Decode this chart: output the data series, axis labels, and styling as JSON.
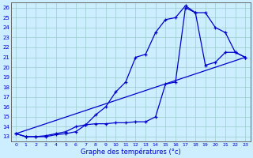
{
  "xlabel": "Graphe des températures (°c)",
  "bg_color": "#cceeff",
  "line_color": "#0000cc",
  "grid_color": "#99cccc",
  "axis_color": "#666666",
  "xlim": [
    -0.5,
    23.5
  ],
  "ylim": [
    12.5,
    26.5
  ],
  "xticks": [
    0,
    1,
    2,
    3,
    4,
    5,
    6,
    7,
    8,
    9,
    10,
    11,
    12,
    13,
    14,
    15,
    16,
    17,
    18,
    19,
    20,
    21,
    22,
    23
  ],
  "yticks": [
    13,
    14,
    15,
    16,
    17,
    18,
    19,
    20,
    21,
    22,
    23,
    24,
    25,
    26
  ],
  "line1_x": [
    0,
    1,
    2,
    3,
    4,
    5,
    6,
    7,
    8,
    9,
    10,
    11,
    12,
    13,
    14,
    15,
    16,
    17,
    18,
    19,
    20,
    21,
    22,
    23
  ],
  "line1_y": [
    13.3,
    13.0,
    13.0,
    13.0,
    13.2,
    13.3,
    13.5,
    14.2,
    15.2,
    16.0,
    17.5,
    18.5,
    21.0,
    21.3,
    23.5,
    24.8,
    25.0,
    26.2,
    25.5,
    25.5,
    24.0,
    23.5,
    21.5,
    21.0
  ],
  "line2_x": [
    0,
    1,
    2,
    3,
    4,
    5,
    6,
    7,
    8,
    9,
    10,
    11,
    12,
    13,
    14,
    15,
    16,
    17,
    18,
    19,
    20,
    21,
    22,
    23
  ],
  "line2_y": [
    13.3,
    13.0,
    13.0,
    13.1,
    13.3,
    13.5,
    14.0,
    14.2,
    14.3,
    14.3,
    14.4,
    14.4,
    14.5,
    14.5,
    15.0,
    18.3,
    18.5,
    26.0,
    25.5,
    20.2,
    20.5,
    21.5,
    21.5,
    21.0
  ],
  "line3_x": [
    0,
    23
  ],
  "line3_y": [
    13.3,
    21.0
  ]
}
